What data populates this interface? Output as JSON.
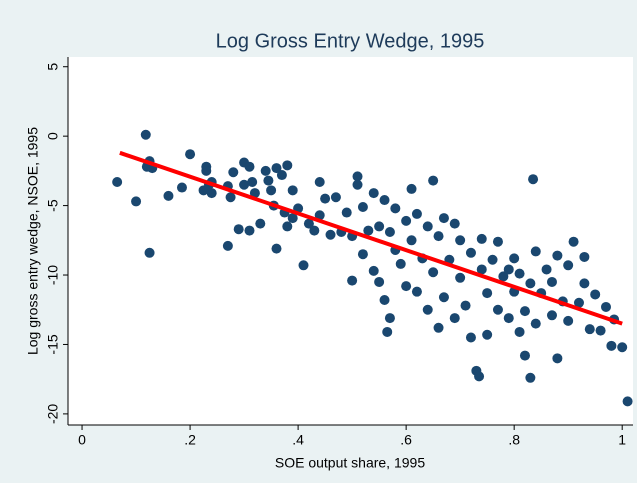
{
  "chart_data": {
    "type": "scatter",
    "title": "Log Gross Entry Wedge, 1995",
    "x_label": "SOE output share, 1995",
    "y_label": "Log gross entry wedge, NSOE, 1995",
    "xlim": [
      -0.026,
      1.02
    ],
    "ylim": [
      -20.8,
      5.7
    ],
    "xticks": [
      0,
      {
        "value": 0.2,
        "label": ".2"
      },
      {
        "value": 0.4,
        "label": ".4"
      },
      {
        "value": 0.6,
        "label": ".6"
      },
      {
        "value": 0.8,
        "label": ".8"
      },
      1
    ],
    "yticks": [
      5,
      0,
      -5,
      -10,
      -15,
      -20
    ],
    "color": "#1a476f",
    "x": [
      0.065,
      0.1,
      0.118,
      0.12,
      0.125,
      0.13,
      0.125,
      0.16,
      0.185,
      0.2,
      0.225,
      0.23,
      0.23,
      0.235,
      0.24,
      0.24,
      0.27,
      0.27,
      0.275,
      0.28,
      0.29,
      0.3,
      0.3,
      0.31,
      0.31,
      0.315,
      0.32,
      0.33,
      0.34,
      0.345,
      0.35,
      0.355,
      0.36,
      0.36,
      0.37,
      0.375,
      0.38,
      0.38,
      0.39,
      0.39,
      0.4,
      0.41,
      0.42,
      0.43,
      0.44,
      0.44,
      0.45,
      0.46,
      0.47,
      0.48,
      0.49,
      0.5,
      0.5,
      0.51,
      0.51,
      0.52,
      0.52,
      0.53,
      0.54,
      0.54,
      0.55,
      0.55,
      0.56,
      0.56,
      0.565,
      0.57,
      0.57,
      0.58,
      0.58,
      0.59,
      0.6,
      0.6,
      0.61,
      0.61,
      0.62,
      0.62,
      0.63,
      0.64,
      0.64,
      0.65,
      0.65,
      0.66,
      0.66,
      0.67,
      0.67,
      0.68,
      0.69,
      0.69,
      0.7,
      0.7,
      0.71,
      0.72,
      0.72,
      0.73,
      0.735,
      0.74,
      0.74,
      0.75,
      0.75,
      0.76,
      0.77,
      0.77,
      0.78,
      0.79,
      0.79,
      0.8,
      0.8,
      0.81,
      0.81,
      0.82,
      0.82,
      0.83,
      0.83,
      0.835,
      0.84,
      0.84,
      0.85,
      0.86,
      0.87,
      0.87,
      0.88,
      0.88,
      0.89,
      0.9,
      0.9,
      0.91,
      0.92,
      0.93,
      0.93,
      0.94,
      0.95,
      0.96,
      0.97,
      0.98,
      0.985,
      1.0,
      1.01
    ],
    "values": [
      -3.3,
      -4.7,
      0.1,
      -2.2,
      -1.8,
      -2.3,
      -8.4,
      -4.3,
      -3.7,
      -1.3,
      -3.9,
      -2.2,
      -2.5,
      -3.5,
      -4.1,
      -3.3,
      -3.6,
      -7.9,
      -4.4,
      -2.6,
      -6.7,
      -3.5,
      -1.9,
      -2.2,
      -6.8,
      -3.3,
      -4.1,
      -6.3,
      -2.5,
      -3.2,
      -3.9,
      -5.0,
      -8.1,
      -2.3,
      -2.8,
      -5.5,
      -2.1,
      -6.5,
      -3.9,
      -5.9,
      -5.2,
      -9.3,
      -6.3,
      -6.8,
      -3.3,
      -5.7,
      -4.5,
      -7.1,
      -4.4,
      -6.9,
      -5.5,
      -7.2,
      -10.4,
      -2.9,
      -3.5,
      -5.1,
      -8.5,
      -6.8,
      -4.1,
      -9.7,
      -6.5,
      -10.5,
      -4.6,
      -11.8,
      -14.1,
      -6.9,
      -13.1,
      -5.2,
      -8.2,
      -9.2,
      -6.1,
      -10.8,
      -3.8,
      -7.5,
      -5.6,
      -11.2,
      -8.8,
      -6.5,
      -12.5,
      -3.2,
      -9.8,
      -7.2,
      -13.8,
      -5.9,
      -11.6,
      -8.9,
      -6.3,
      -13.1,
      -10.2,
      -7.5,
      -12.2,
      -14.5,
      -8.4,
      -16.9,
      -17.3,
      -9.6,
      -7.4,
      -11.3,
      -14.3,
      -8.9,
      -12.5,
      -7.6,
      -10.1,
      -13.1,
      -9.6,
      -8.8,
      -11.2,
      -14.1,
      -9.9,
      -12.6,
      -15.8,
      -10.6,
      -17.4,
      -3.1,
      -8.3,
      -13.5,
      -11.3,
      -9.6,
      -12.9,
      -10.5,
      -8.6,
      -16.0,
      -11.9,
      -9.3,
      -13.3,
      -7.6,
      -12.0,
      -10.6,
      -8.7,
      -13.9,
      -11.4,
      -14.0,
      -12.3,
      -15.1,
      -13.2,
      -15.2,
      -19.1
    ],
    "fit_line": {
      "x": [
        0.07,
        1.0
      ],
      "values": [
        -1.2,
        -13.5
      ],
      "color": "#ff0000"
    }
  }
}
